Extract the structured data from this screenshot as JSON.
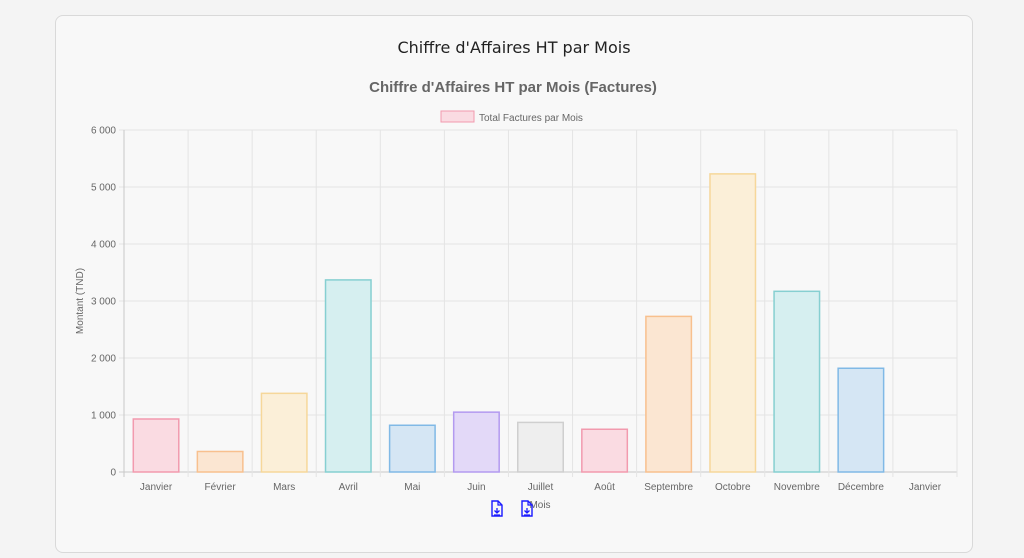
{
  "card_title": "Chiffre d'Affaires HT par Mois",
  "chart_data": {
    "type": "bar",
    "title": "Chiffre d'Affaires HT par Mois (Factures)",
    "xlabel": "Mois",
    "ylabel": "Montant (TND)",
    "ylim": [
      0,
      6000
    ],
    "yticks": [
      "0",
      "1 000",
      "2 000",
      "3 000",
      "4 000",
      "5 000",
      "6 000"
    ],
    "categories": [
      "Janvier",
      "Février",
      "Mars",
      "Avril",
      "Mai",
      "Juin",
      "Juillet",
      "Août",
      "Septembre",
      "Octobre",
      "Novembre",
      "Décembre",
      "Janvier"
    ],
    "series": [
      {
        "name": "Total Factures par Mois",
        "values": [
          930,
          360,
          1380,
          3370,
          820,
          1050,
          870,
          750,
          2730,
          5230,
          3170,
          1820,
          0
        ]
      }
    ],
    "legend": "top",
    "grid": true,
    "bar_fills": [
      "#fadbe2",
      "#fbe6d2",
      "#fbefd8",
      "#d6eff0",
      "#d5e6f4",
      "#e3d9f8",
      "#eeeeee",
      "#fadbe2",
      "#fbe6d2",
      "#fbefd8",
      "#d6eff0",
      "#d5e6f4",
      "#fadbe2"
    ],
    "bar_strokes": [
      "#f29aae",
      "#f8c08e",
      "#f6d79a",
      "#86cfd1",
      "#80b9e6",
      "#b39af0",
      "#cfcfcf",
      "#f29aae",
      "#f8c08e",
      "#f6d79a",
      "#86cfd1",
      "#80b9e6",
      "#f29aae"
    ]
  },
  "actions": {
    "download_1_icon": "file-download-icon",
    "download_2_icon": "file-download-icon"
  }
}
